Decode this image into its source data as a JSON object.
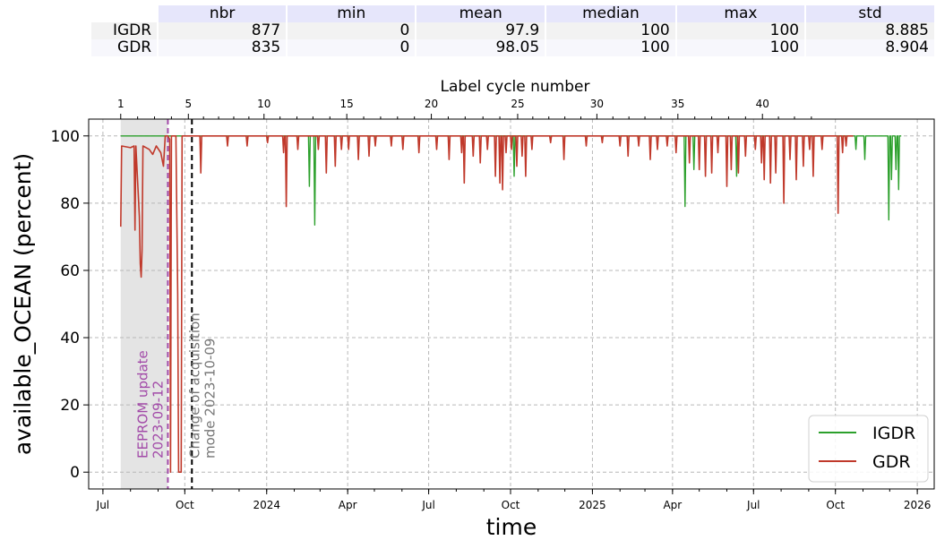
{
  "stats_table": {
    "headers": [
      "nbr",
      "min",
      "mean",
      "median",
      "max",
      "std"
    ],
    "rows": [
      {
        "label": "IGDR",
        "values": [
          "877",
          "0",
          "97.9",
          "100",
          "100",
          "8.885"
        ]
      },
      {
        "label": "GDR",
        "values": [
          "835",
          "0",
          "98.05",
          "100",
          "100",
          "8.904"
        ]
      }
    ]
  },
  "chart_data": {
    "type": "line",
    "xlabel": "time",
    "ylabel": "available_OCEAN (percent)",
    "top_axis_label": "Label cycle number",
    "xlim": [
      "2023-06-15",
      "2026-01-20"
    ],
    "ylim": [
      -5,
      105
    ],
    "x_tick_labels": [
      "Jul",
      "Oct",
      "2024",
      "Apr",
      "Jul",
      "Oct",
      "2025",
      "Apr",
      "Jul",
      "Oct",
      "2026"
    ],
    "x_tick_dates": [
      "2023-07-01",
      "2023-10-01",
      "2024-01-01",
      "2024-04-01",
      "2024-07-01",
      "2024-10-01",
      "2025-01-01",
      "2025-04-01",
      "2025-07-01",
      "2025-10-01",
      "2026-01-01"
    ],
    "y_ticks": [
      0,
      20,
      40,
      60,
      80,
      100
    ],
    "top_ticks": [
      1,
      5,
      10,
      15,
      20,
      25,
      30,
      35,
      40
    ],
    "top_tick_dates": [
      "2023-07-21",
      "2023-10-05",
      "2023-12-29",
      "2024-03-31",
      "2024-07-04",
      "2024-10-09",
      "2025-01-06",
      "2025-04-07",
      "2025-07-11"
    ],
    "grid": true,
    "legend_position": "lower right",
    "shaded_period": [
      "2023-07-21",
      "2023-09-12"
    ],
    "annotations": [
      {
        "date": "2023-09-12",
        "text": "EEPROM update\n2023-09-12",
        "color": "#a24aa8",
        "style": "dashed"
      },
      {
        "date": "2023-10-09",
        "text": "Change of acquisition\nmode 2023-10-09",
        "color": "#000000",
        "style": "dashed"
      }
    ],
    "series": [
      {
        "name": "IGDR",
        "color": "#2ca02c",
        "base": 100,
        "start": "2023-07-21",
        "end": "2025-12-14",
        "dips": [
          {
            "date": "2024-02-18",
            "value": 85
          },
          {
            "date": "2024-02-24",
            "value": 73.5
          },
          {
            "date": "2024-10-05",
            "value": 88
          },
          {
            "date": "2025-04-15",
            "value": 79
          },
          {
            "date": "2025-04-25",
            "value": 90
          },
          {
            "date": "2025-06-12",
            "value": 88
          },
          {
            "date": "2025-10-24",
            "value": 96
          },
          {
            "date": "2025-11-03",
            "value": 93
          },
          {
            "date": "2025-11-30",
            "value": 75
          },
          {
            "date": "2025-12-03",
            "value": 87
          },
          {
            "date": "2025-12-08",
            "value": 90
          },
          {
            "date": "2025-12-11",
            "value": 84
          }
        ]
      },
      {
        "name": "GDR",
        "color": "#c0392b",
        "base": 100,
        "start": "2023-07-21",
        "end": "2025-10-21",
        "early": [
          {
            "date": "2023-07-21",
            "value": 73
          },
          {
            "date": "2023-07-22",
            "value": 97
          },
          {
            "date": "2023-08-01",
            "value": 96.5
          },
          {
            "date": "2023-08-05",
            "value": 97
          },
          {
            "date": "2023-08-06",
            "value": 72
          },
          {
            "date": "2023-08-07",
            "value": 97
          },
          {
            "date": "2023-08-11",
            "value": 76
          },
          {
            "date": "2023-08-12",
            "value": 62
          },
          {
            "date": "2023-08-13",
            "value": 58
          },
          {
            "date": "2023-08-14",
            "value": 66
          },
          {
            "date": "2023-08-15",
            "value": 97
          },
          {
            "date": "2023-08-22",
            "value": 96
          },
          {
            "date": "2023-08-26",
            "value": 94.5
          },
          {
            "date": "2023-08-30",
            "value": 97
          },
          {
            "date": "2023-09-04",
            "value": 95
          },
          {
            "date": "2023-09-07",
            "value": 91
          },
          {
            "date": "2023-09-09",
            "value": 100
          },
          {
            "date": "2023-09-12",
            "value": 100
          },
          {
            "date": "2023-09-14",
            "value": 99
          },
          {
            "date": "2023-09-15",
            "value": 0
          },
          {
            "date": "2023-09-16",
            "value": 100
          },
          {
            "date": "2023-09-21",
            "value": 100
          },
          {
            "date": "2023-09-23",
            "value": 53
          },
          {
            "date": "2023-09-24",
            "value": 0
          },
          {
            "date": "2023-09-27",
            "value": 0
          },
          {
            "date": "2023-09-28",
            "value": 100
          },
          {
            "date": "2023-10-09",
            "value": 100
          }
        ],
        "dips": [
          {
            "date": "2023-10-19",
            "value": 89
          },
          {
            "date": "2023-11-18",
            "value": 97
          },
          {
            "date": "2023-12-10",
            "value": 97
          },
          {
            "date": "2024-01-02",
            "value": 98
          },
          {
            "date": "2024-01-20",
            "value": 95
          },
          {
            "date": "2024-01-23",
            "value": 79
          },
          {
            "date": "2024-02-05",
            "value": 96
          },
          {
            "date": "2024-02-28",
            "value": 96
          },
          {
            "date": "2024-03-08",
            "value": 89
          },
          {
            "date": "2024-03-18",
            "value": 91
          },
          {
            "date": "2024-03-25",
            "value": 96
          },
          {
            "date": "2024-04-02",
            "value": 96
          },
          {
            "date": "2024-04-13",
            "value": 93
          },
          {
            "date": "2024-04-25",
            "value": 94
          },
          {
            "date": "2024-05-02",
            "value": 97
          },
          {
            "date": "2024-05-20",
            "value": 97
          },
          {
            "date": "2024-06-02",
            "value": 96
          },
          {
            "date": "2024-06-20",
            "value": 95
          },
          {
            "date": "2024-07-10",
            "value": 96
          },
          {
            "date": "2024-07-24",
            "value": 93
          },
          {
            "date": "2024-08-07",
            "value": 95
          },
          {
            "date": "2024-08-10",
            "value": 86
          },
          {
            "date": "2024-08-20",
            "value": 94
          },
          {
            "date": "2024-08-28",
            "value": 92
          },
          {
            "date": "2024-09-05",
            "value": 96
          },
          {
            "date": "2024-09-14",
            "value": 88
          },
          {
            "date": "2024-09-19",
            "value": 86
          },
          {
            "date": "2024-09-22",
            "value": 84
          },
          {
            "date": "2024-09-26",
            "value": 95
          },
          {
            "date": "2024-10-02",
            "value": 96
          },
          {
            "date": "2024-10-08",
            "value": 91
          },
          {
            "date": "2024-10-14",
            "value": 94
          },
          {
            "date": "2024-10-18",
            "value": 88
          },
          {
            "date": "2024-10-25",
            "value": 96
          },
          {
            "date": "2024-11-15",
            "value": 98
          },
          {
            "date": "2024-11-30",
            "value": 93
          },
          {
            "date": "2024-12-25",
            "value": 97
          },
          {
            "date": "2025-01-12",
            "value": 98
          },
          {
            "date": "2025-02-01",
            "value": 97
          },
          {
            "date": "2025-02-10",
            "value": 94
          },
          {
            "date": "2025-02-22",
            "value": 97
          },
          {
            "date": "2025-03-07",
            "value": 93
          },
          {
            "date": "2025-03-15",
            "value": 96
          },
          {
            "date": "2025-03-26",
            "value": 97
          },
          {
            "date": "2025-04-05",
            "value": 95
          },
          {
            "date": "2025-04-20",
            "value": 92
          },
          {
            "date": "2025-05-01",
            "value": 90
          },
          {
            "date": "2025-05-08",
            "value": 88
          },
          {
            "date": "2025-05-15",
            "value": 89
          },
          {
            "date": "2025-05-22",
            "value": 95
          },
          {
            "date": "2025-06-01",
            "value": 85
          },
          {
            "date": "2025-06-06",
            "value": 90
          },
          {
            "date": "2025-06-14",
            "value": 89
          },
          {
            "date": "2025-06-22",
            "value": 94
          },
          {
            "date": "2025-07-03",
            "value": 96
          },
          {
            "date": "2025-07-10",
            "value": 92
          },
          {
            "date": "2025-07-13",
            "value": 87
          },
          {
            "date": "2025-07-20",
            "value": 86
          },
          {
            "date": "2025-07-26",
            "value": 89
          },
          {
            "date": "2025-08-04",
            "value": 80
          },
          {
            "date": "2025-08-11",
            "value": 93
          },
          {
            "date": "2025-08-18",
            "value": 87
          },
          {
            "date": "2025-08-26",
            "value": 91
          },
          {
            "date": "2025-09-02",
            "value": 96
          },
          {
            "date": "2025-09-06",
            "value": 88
          },
          {
            "date": "2025-09-16",
            "value": 96
          },
          {
            "date": "2025-10-04",
            "value": 77
          },
          {
            "date": "2025-10-09",
            "value": 95
          },
          {
            "date": "2025-10-13",
            "value": 97
          }
        ]
      }
    ]
  }
}
